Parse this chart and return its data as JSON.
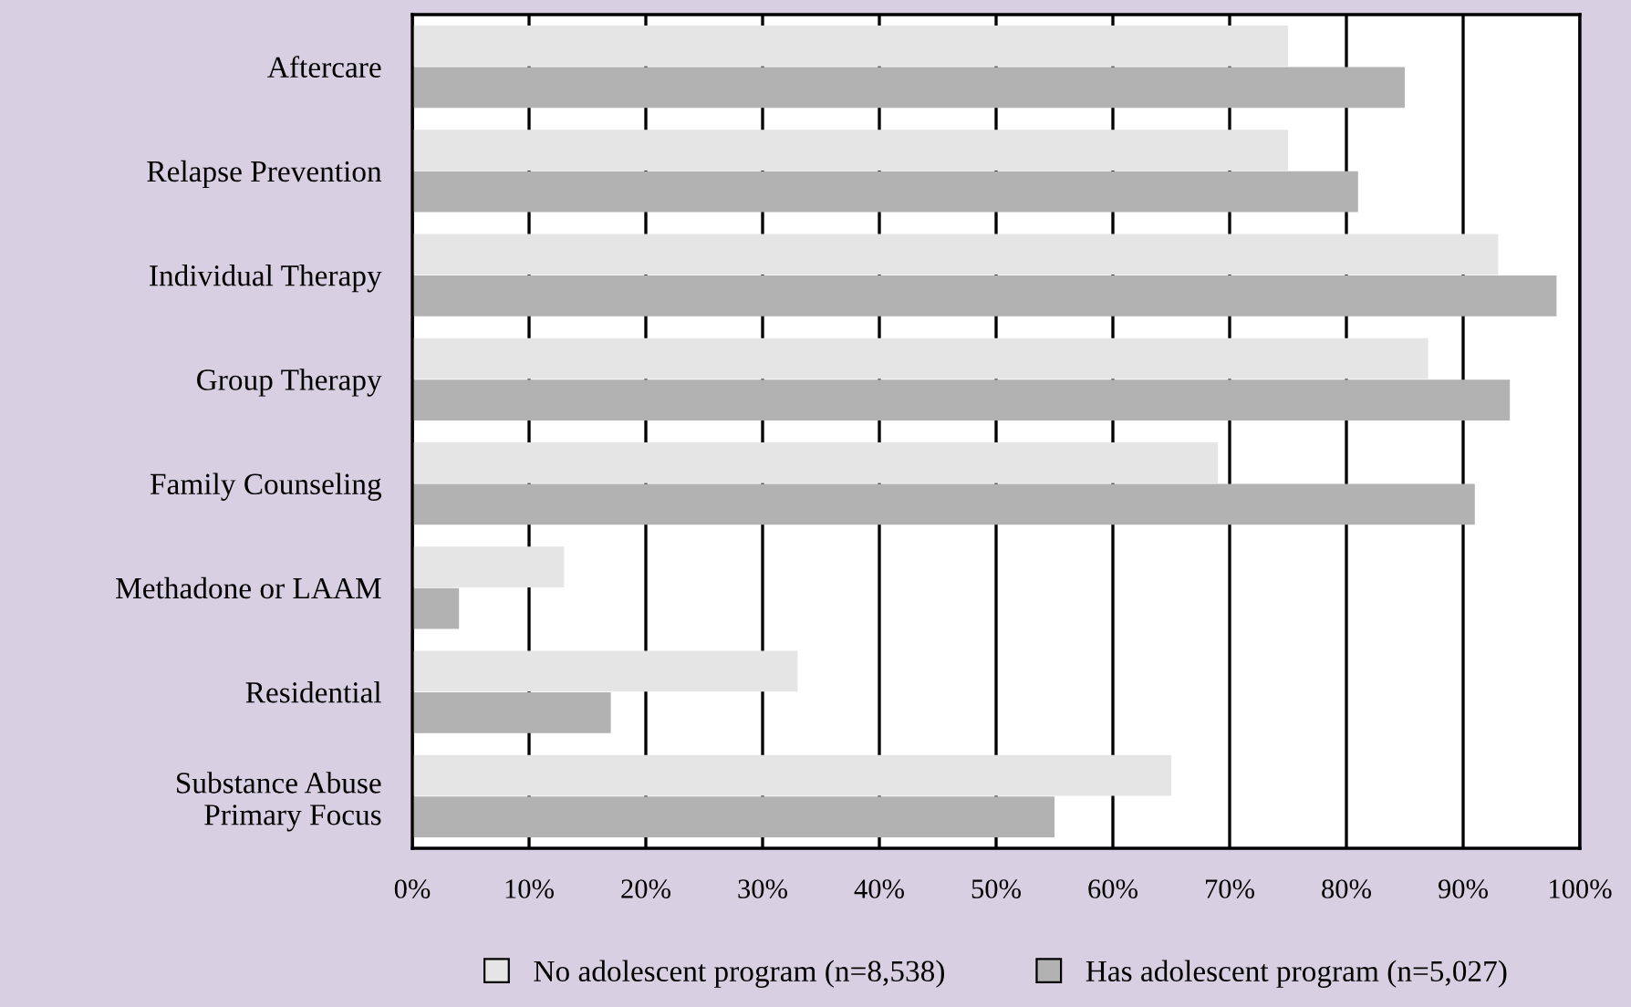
{
  "chart_data": {
    "type": "bar",
    "orientation": "horizontal",
    "categories": [
      "Aftercare",
      "Relapse Prevention",
      "Individual Therapy",
      "Group Therapy",
      "Family Counseling",
      "Methadone or LAAM",
      "Residential",
      "Substance Abuse\nPrimary Focus"
    ],
    "series": [
      {
        "name": "No adolescent program (n=8,538)",
        "color": "#e5e5e5",
        "values": [
          75,
          75,
          93,
          87,
          69,
          13,
          33,
          65
        ]
      },
      {
        "name": "Has adolescent program (n=5,027)",
        "color": "#b2b2b2",
        "values": [
          85,
          81,
          98,
          94,
          91,
          4,
          17,
          55
        ]
      }
    ],
    "xlim": [
      0,
      100
    ],
    "xticks": [
      {
        "value": 0,
        "label": "0%"
      },
      {
        "value": 10,
        "label": "10%"
      },
      {
        "value": 20,
        "label": "20%"
      },
      {
        "value": 30,
        "label": "30%"
      },
      {
        "value": 40,
        "label": "40%"
      },
      {
        "value": 50,
        "label": "50%"
      },
      {
        "value": 60,
        "label": "60%"
      },
      {
        "value": 70,
        "label": "70%"
      },
      {
        "value": 80,
        "label": "80%"
      },
      {
        "value": 90,
        "label": "90%"
      },
      {
        "value": 100,
        "label": "100%"
      }
    ],
    "grid": "x",
    "legend": "bottom"
  }
}
